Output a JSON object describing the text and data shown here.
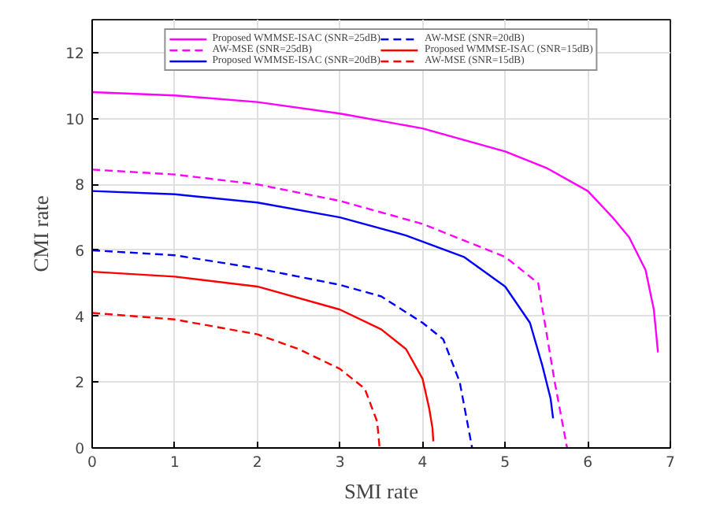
{
  "chart_data": {
    "type": "line",
    "xlabel": "SMI rate",
    "ylabel": "CMI rate",
    "xlim": [
      0,
      7
    ],
    "ylim": [
      0,
      13
    ],
    "xticks": [
      0,
      1,
      2,
      3,
      4,
      5,
      6,
      7
    ],
    "yticks": [
      0,
      2,
      4,
      6,
      8,
      10,
      12
    ],
    "grid": true,
    "legend": "top",
    "marker": "none",
    "series": [
      {
        "name": "Proposed WMMSE-ISAC (SNR=25dB)",
        "color": "#ff00ff",
        "line_style": "solid",
        "x": [
          0,
          1,
          2,
          3,
          4,
          5,
          5.5,
          6,
          6.3,
          6.5,
          6.7,
          6.8,
          6.85
        ],
        "values": [
          10.8,
          10.7,
          10.5,
          10.15,
          9.7,
          9.0,
          8.5,
          7.8,
          7.0,
          6.4,
          5.4,
          4.2,
          2.9
        ]
      },
      {
        "name": "AW-MSE (SNR=25dB)",
        "color": "#ff00ff",
        "line_style": "dashed",
        "x": [
          0,
          1,
          2,
          3,
          4,
          4.5,
          5,
          5.4,
          5.5,
          5.6,
          5.75
        ],
        "values": [
          8.45,
          8.3,
          8.0,
          7.5,
          6.8,
          6.3,
          5.8,
          5.0,
          3.5,
          2.0,
          0
        ]
      },
      {
        "name": "Proposed WMMSE-ISAC (SNR=20dB)",
        "color": "#0000ff",
        "line_style": "solid",
        "x": [
          0,
          1,
          2,
          3,
          3.8,
          4.5,
          5,
          5.3,
          5.45,
          5.55,
          5.58
        ],
        "values": [
          7.8,
          7.7,
          7.45,
          7.0,
          6.45,
          5.8,
          4.9,
          3.8,
          2.5,
          1.5,
          0.9
        ]
      },
      {
        "name": "AW-MSE (SNR=20dB)",
        "color": "#0000ff",
        "line_style": "dashed",
        "x": [
          0,
          1,
          2,
          3,
          3.5,
          4,
          4.25,
          4.45,
          4.6
        ],
        "values": [
          6.0,
          5.85,
          5.45,
          4.95,
          4.6,
          3.8,
          3.3,
          2.0,
          0
        ]
      },
      {
        "name": "Proposed WMMSE-ISAC (SNR=15dB)",
        "color": "#ff0000",
        "line_style": "solid",
        "x": [
          0,
          1,
          2,
          3,
          3.5,
          3.8,
          4.0,
          4.08,
          4.12,
          4.13
        ],
        "values": [
          5.35,
          5.2,
          4.9,
          4.2,
          3.6,
          3.0,
          2.1,
          1.2,
          0.6,
          0.2
        ]
      },
      {
        "name": "AW-MSE (SNR=15dB)",
        "color": "#ff0000",
        "line_style": "dashed",
        "x": [
          0,
          1,
          2,
          2.5,
          3,
          3.3,
          3.45,
          3.48
        ],
        "values": [
          4.1,
          3.9,
          3.45,
          3.0,
          2.4,
          1.8,
          0.8,
          0
        ]
      }
    ]
  }
}
